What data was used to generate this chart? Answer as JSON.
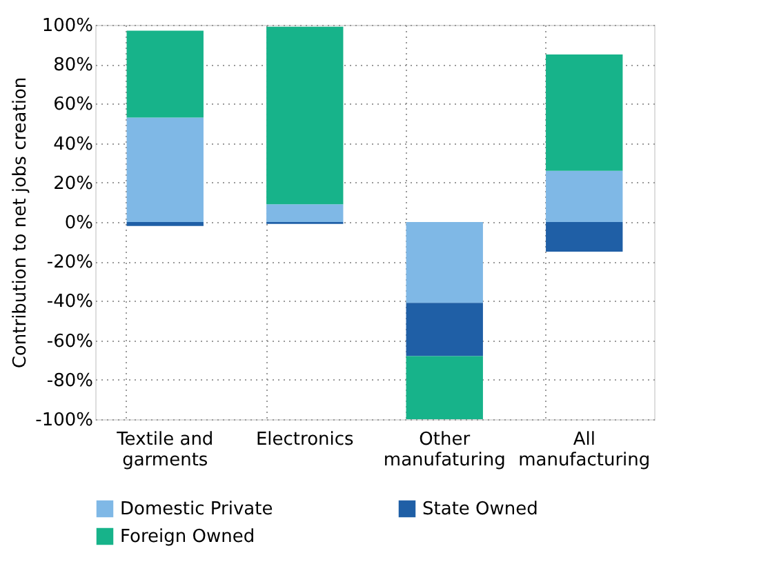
{
  "chart_data": {
    "type": "bar",
    "stacked": true,
    "ylabel": "Contribution to net jobs creation",
    "categories": [
      "Textile and garments",
      "Electronics",
      "Other manufaturing",
      "All manufacturing"
    ],
    "series": [
      {
        "name": "Domestic Private",
        "color": "#7fb8e6",
        "values": [
          53,
          9,
          -41,
          26
        ]
      },
      {
        "name": "State Owned",
        "color": "#1f5fa6",
        "values": [
          -2,
          -1,
          -27,
          -15
        ]
      },
      {
        "name": "Foreign Owned",
        "color": "#17b38a",
        "values": [
          44,
          90,
          -32,
          59
        ]
      }
    ],
    "ylim": [
      -100,
      100
    ],
    "yticks": [
      {
        "value": -100,
        "label": "-100%"
      },
      {
        "value": -80,
        "label": "-80%"
      },
      {
        "value": -60,
        "label": "-60%"
      },
      {
        "value": -40,
        "label": "-40%"
      },
      {
        "value": -20,
        "label": "-20%"
      },
      {
        "value": 0,
        "label": "0%"
      },
      {
        "value": 20,
        "label": "20%"
      },
      {
        "value": 40,
        "label": "40%"
      },
      {
        "value": 60,
        "label": "60%"
      },
      {
        "value": 80,
        "label": "80%"
      },
      {
        "value": 100,
        "label": "100%"
      }
    ],
    "grid": true,
    "legend": "bottom"
  }
}
